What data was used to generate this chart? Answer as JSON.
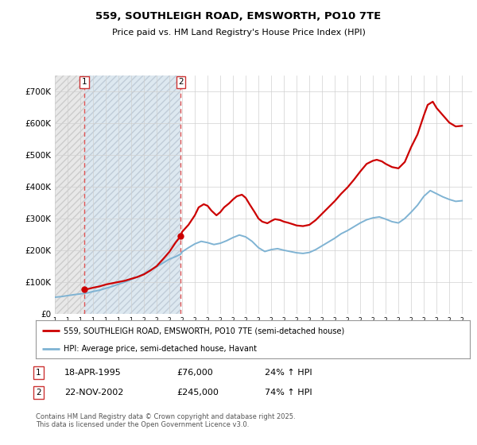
{
  "title": "559, SOUTHLEIGH ROAD, EMSWORTH, PO10 7TE",
  "subtitle": "Price paid vs. HM Land Registry's House Price Index (HPI)",
  "legend_line1": "559, SOUTHLEIGH ROAD, EMSWORTH, PO10 7TE (semi-detached house)",
  "legend_line2": "HPI: Average price, semi-detached house, Havant",
  "sale1_date": "18-APR-1995",
  "sale1_price": "£76,000",
  "sale1_hpi": "24% ↑ HPI",
  "sale2_date": "22-NOV-2002",
  "sale2_price": "£245,000",
  "sale2_hpi": "74% ↑ HPI",
  "copyright": "Contains HM Land Registry data © Crown copyright and database right 2025.\nThis data is licensed under the Open Government Licence v3.0.",
  "background_color": "#ffffff",
  "red_line_color": "#cc0000",
  "blue_line_color": "#7fb3d3",
  "vline_color": "#e05555",
  "ylim": [
    0,
    750000
  ],
  "yticks": [
    0,
    100000,
    200000,
    300000,
    400000,
    500000,
    600000,
    700000
  ],
  "ytick_labels": [
    "£0",
    "£100K",
    "£200K",
    "£300K",
    "£400K",
    "£500K",
    "£600K",
    "£700K"
  ],
  "xmin": 1993.0,
  "xmax": 2025.8,
  "sale1_x": 1995.29,
  "sale2_x": 2002.9,
  "sale1_y": 76000,
  "sale2_y": 245000,
  "red_line_data": {
    "x": [
      1995.29,
      1995.6,
      1996.0,
      1996.5,
      1997.0,
      1997.5,
      1998.0,
      1998.5,
      1999.0,
      1999.5,
      2000.0,
      2000.5,
      2001.0,
      2001.5,
      2002.0,
      2002.5,
      2002.9,
      2003.0,
      2003.5,
      2004.0,
      2004.3,
      2004.7,
      2005.0,
      2005.3,
      2005.7,
      2006.0,
      2006.3,
      2006.7,
      2007.0,
      2007.3,
      2007.7,
      2008.0,
      2008.3,
      2008.7,
      2009.0,
      2009.3,
      2009.7,
      2010.0,
      2010.3,
      2010.7,
      2011.0,
      2011.3,
      2011.7,
      2012.0,
      2012.5,
      2013.0,
      2013.5,
      2014.0,
      2014.5,
      2015.0,
      2015.5,
      2016.0,
      2016.5,
      2017.0,
      2017.5,
      2018.0,
      2018.3,
      2018.7,
      2019.0,
      2019.5,
      2020.0,
      2020.5,
      2021.0,
      2021.5,
      2022.0,
      2022.3,
      2022.7,
      2023.0,
      2023.5,
      2024.0,
      2024.5,
      2025.0
    ],
    "y": [
      76000,
      78000,
      82000,
      86000,
      92000,
      96000,
      100000,
      104000,
      110000,
      116000,
      124000,
      136000,
      150000,
      172000,
      195000,
      225000,
      245000,
      258000,
      280000,
      310000,
      335000,
      345000,
      340000,
      325000,
      310000,
      320000,
      335000,
      348000,
      360000,
      370000,
      375000,
      365000,
      345000,
      320000,
      300000,
      290000,
      285000,
      292000,
      298000,
      295000,
      290000,
      287000,
      282000,
      278000,
      276000,
      280000,
      295000,
      315000,
      335000,
      355000,
      378000,
      398000,
      422000,
      448000,
      472000,
      482000,
      485000,
      480000,
      472000,
      462000,
      458000,
      478000,
      525000,
      565000,
      625000,
      658000,
      668000,
      648000,
      625000,
      602000,
      590000,
      592000
    ]
  },
  "blue_line_data": {
    "x": [
      1993.0,
      1993.5,
      1994.0,
      1994.5,
      1995.29,
      1995.6,
      1996.0,
      1996.5,
      1997.0,
      1997.5,
      1998.0,
      1998.5,
      1999.0,
      1999.5,
      2000.0,
      2000.5,
      2001.0,
      2001.5,
      2002.0,
      2002.5,
      2002.9,
      2003.0,
      2003.5,
      2004.0,
      2004.5,
      2005.0,
      2005.5,
      2006.0,
      2006.5,
      2007.0,
      2007.5,
      2008.0,
      2008.5,
      2009.0,
      2009.5,
      2010.0,
      2010.5,
      2011.0,
      2011.5,
      2012.0,
      2012.5,
      2013.0,
      2013.5,
      2014.0,
      2014.5,
      2015.0,
      2015.5,
      2016.0,
      2016.5,
      2017.0,
      2017.5,
      2018.0,
      2018.5,
      2019.0,
      2019.5,
      2020.0,
      2020.5,
      2021.0,
      2021.5,
      2022.0,
      2022.5,
      2023.0,
      2023.5,
      2024.0,
      2024.5,
      2025.0
    ],
    "y": [
      52000,
      54000,
      57000,
      60000,
      64000,
      66000,
      70000,
      74000,
      80000,
      86000,
      93000,
      100000,
      108000,
      116000,
      126000,
      138000,
      148000,
      160000,
      172000,
      180000,
      188000,
      195000,
      208000,
      220000,
      228000,
      224000,
      218000,
      222000,
      230000,
      240000,
      248000,
      242000,
      228000,
      208000,
      196000,
      202000,
      205000,
      200000,
      196000,
      192000,
      190000,
      193000,
      202000,
      214000,
      226000,
      238000,
      252000,
      262000,
      274000,
      286000,
      296000,
      302000,
      305000,
      298000,
      290000,
      286000,
      300000,
      320000,
      342000,
      370000,
      388000,
      378000,
      368000,
      360000,
      354000,
      356000
    ]
  }
}
